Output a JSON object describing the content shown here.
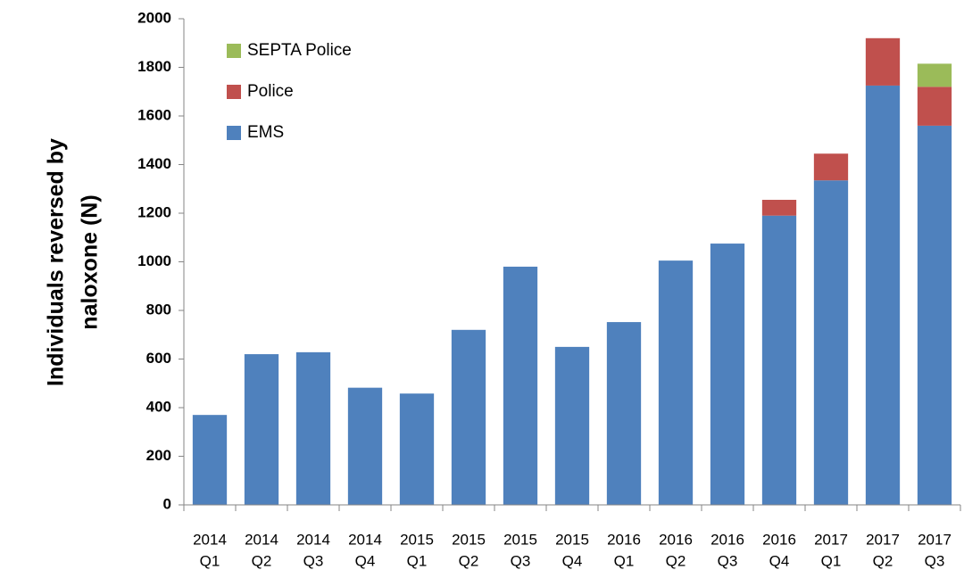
{
  "chart_data": {
    "type": "stacked_bar",
    "ylabel": [
      "Individuals reversed by",
      "naloxone (N)"
    ],
    "categories": [
      [
        "2014",
        "Q1"
      ],
      [
        "2014",
        "Q2"
      ],
      [
        "2014",
        "Q3"
      ],
      [
        "2014",
        "Q4"
      ],
      [
        "2015",
        "Q1"
      ],
      [
        "2015",
        "Q2"
      ],
      [
        "2015",
        "Q3"
      ],
      [
        "2015",
        "Q4"
      ],
      [
        "2016",
        "Q1"
      ],
      [
        "2016",
        "Q2"
      ],
      [
        "2016",
        "Q3"
      ],
      [
        "2016",
        "Q4"
      ],
      [
        "2017",
        "Q1"
      ],
      [
        "2017",
        "Q2"
      ],
      [
        "2017",
        "Q3"
      ]
    ],
    "series": [
      {
        "name": "EMS",
        "color": "#4f81bd",
        "values": [
          370,
          620,
          628,
          482,
          458,
          720,
          980,
          650,
          752,
          1005,
          1075,
          1190,
          1335,
          1725,
          1560
        ]
      },
      {
        "name": "Police",
        "color": "#c0504d",
        "values": [
          0,
          0,
          0,
          0,
          0,
          0,
          0,
          0,
          0,
          0,
          0,
          65,
          110,
          195,
          160
        ]
      },
      {
        "name": "SEPTA Police",
        "color": "#9bbb59",
        "values": [
          0,
          0,
          0,
          0,
          0,
          0,
          0,
          0,
          0,
          0,
          0,
          0,
          0,
          0,
          95
        ]
      }
    ],
    "ylim": [
      0,
      2000
    ],
    "yticks": [
      0,
      200,
      400,
      600,
      800,
      1000,
      1200,
      1400,
      1600,
      1800,
      2000
    ],
    "grid": false,
    "legend": "upper left"
  }
}
